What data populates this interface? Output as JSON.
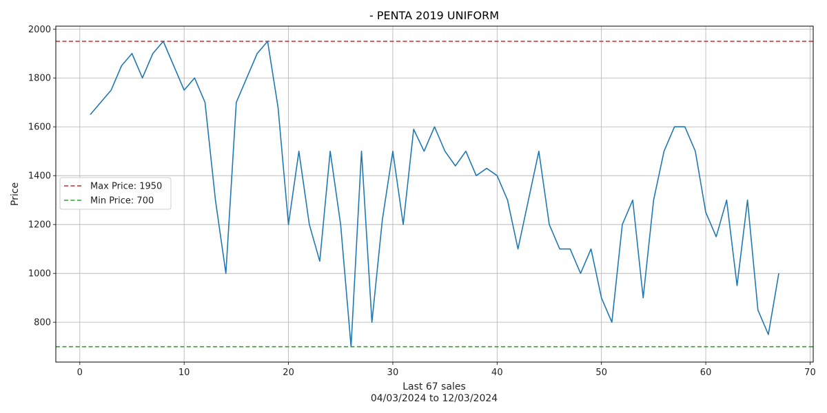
{
  "chart_data": {
    "type": "line",
    "title": "- PENTA 2019 UNIFORM",
    "xlabel": "Last 67 sales",
    "xlabel_sub": "04/03/2024 to 12/03/2024",
    "ylabel": "Price",
    "xlim": [
      -2.3,
      70.3
    ],
    "ylim": [
      637,
      2012
    ],
    "xticks": [
      0,
      10,
      20,
      30,
      40,
      50,
      60,
      70
    ],
    "yticks": [
      800,
      1000,
      1200,
      1400,
      1600,
      1800,
      2000
    ],
    "grid": true,
    "legend_position": "center-left",
    "series": [
      {
        "color": "#1f77b4",
        "x": [
          1,
          2,
          3,
          4,
          5,
          6,
          7,
          8,
          9,
          10,
          11,
          12,
          13,
          14,
          15,
          16,
          17,
          18,
          19,
          20,
          21,
          22,
          23,
          24,
          25,
          26,
          27,
          28,
          29,
          30,
          31,
          32,
          33,
          34,
          35,
          36,
          37,
          38,
          39,
          40,
          41,
          42,
          43,
          44,
          45,
          46,
          47,
          48,
          49,
          50,
          51,
          52,
          53,
          54,
          55,
          56,
          57,
          58,
          59,
          60,
          61,
          62,
          63,
          64,
          65,
          66,
          67
        ],
        "y": [
          1650,
          1700,
          1750,
          1850,
          1900,
          1800,
          1900,
          1950,
          1850,
          1750,
          1800,
          1700,
          1300,
          1000,
          1700,
          1800,
          1900,
          1950,
          1680,
          1200,
          1500,
          1200,
          1050,
          1500,
          1200,
          700,
          1500,
          800,
          1220,
          1500,
          1200,
          1590,
          1500,
          1600,
          1500,
          1440,
          1500,
          1400,
          1430,
          1400,
          1300,
          1100,
          1300,
          1500,
          1200,
          1100,
          1100,
          1000,
          1100,
          900,
          800,
          1200,
          1300,
          900,
          1300,
          1500,
          1600,
          1600,
          1500,
          1250,
          1150,
          1300,
          950,
          1300,
          850,
          750,
          1000
        ]
      }
    ],
    "reference_lines": [
      {
        "name": "Max Price: 1950",
        "value": 1950,
        "color": "#d62728",
        "style": "dashed"
      },
      {
        "name": "Min Price: 700",
        "value": 700,
        "color": "#2ca02c",
        "style": "dashed"
      }
    ]
  }
}
